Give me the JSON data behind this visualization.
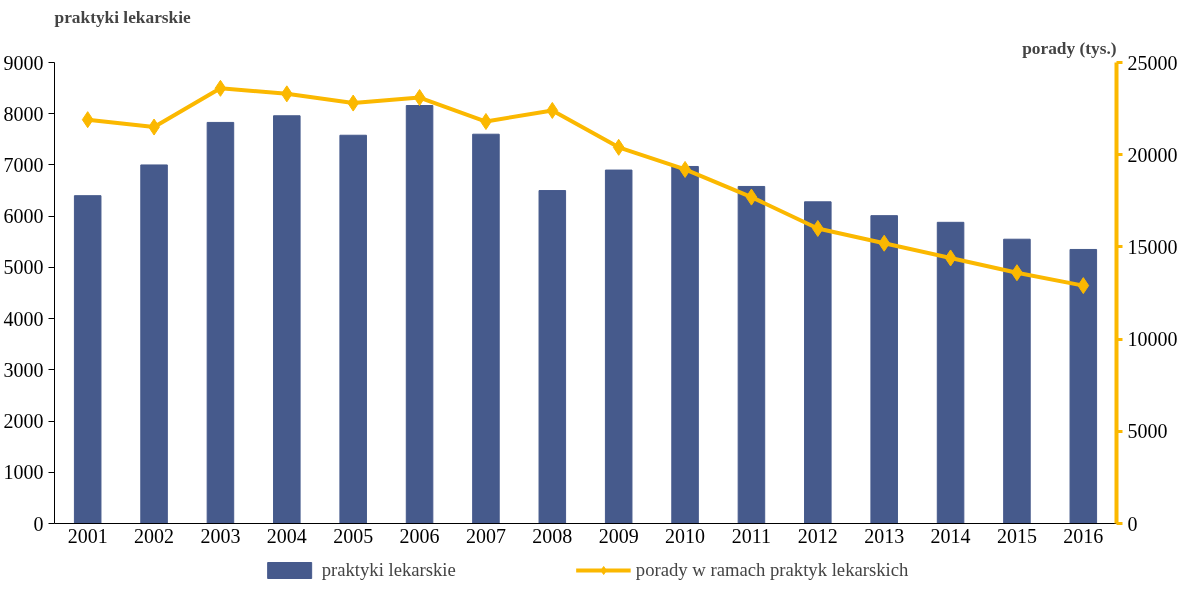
{
  "chart_data": {
    "type": "bar",
    "ylabel": "praktyki lekarskie",
    "y2label": "porady (tys.)",
    "categories": [
      "2001",
      "2002",
      "2003",
      "2004",
      "2005",
      "2006",
      "2007",
      "2008",
      "2009",
      "2010",
      "2011",
      "2012",
      "2013",
      "2014",
      "2015",
      "2016"
    ],
    "series": [
      {
        "name": "praktyki lekarskie",
        "color": "#465a8c",
        "values": [
          6400,
          7000,
          7830,
          7960,
          7580,
          8160,
          7600,
          6500,
          6900,
          6970,
          6580,
          6280,
          6010,
          5880,
          5550,
          5350
        ]
      },
      {
        "name": "porady w ramach praktyk lekarskich",
        "type": "line",
        "axis": "y2",
        "color": "#fbb800",
        "values": [
          21900,
          21500,
          23600,
          23300,
          22800,
          23100,
          21800,
          22400,
          20400,
          19200,
          17700,
          16000,
          15200,
          14400,
          13600,
          12900
        ]
      }
    ],
    "ylim": [
      0,
      9000
    ],
    "yticks": [
      0,
      1000,
      2000,
      3000,
      4000,
      5000,
      6000,
      7000,
      8000,
      9000
    ],
    "y2lim": [
      0,
      25000
    ],
    "y2ticks": [
      0,
      5000,
      10000,
      15000,
      20000,
      25000
    ],
    "grid": false,
    "legend": "bottom",
    "marker": "diamond",
    "line_style": "solid"
  }
}
